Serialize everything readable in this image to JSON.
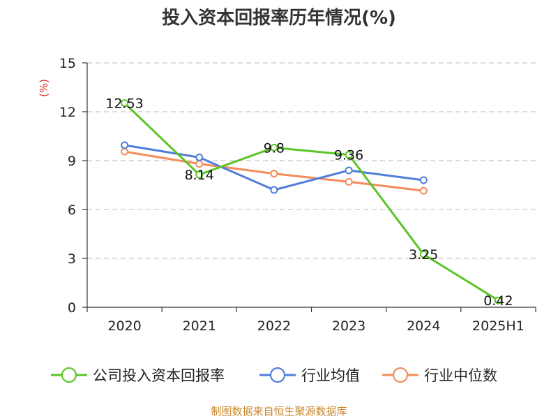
{
  "chart_data": {
    "type": "line",
    "title": "投入资本回报率历年情况(%)",
    "unit_label": "(%)",
    "xlabel": "",
    "ylabel": "",
    "categories": [
      "2020",
      "2021",
      "2022",
      "2023",
      "2024",
      "2025H1"
    ],
    "ylim": [
      0,
      15
    ],
    "yticks": [
      0,
      3,
      6,
      9,
      12,
      15
    ],
    "grid": true,
    "legend_position": "bottom",
    "series": [
      {
        "name": "公司投入资本回报率",
        "color": "#5cc529",
        "values": [
          12.53,
          8.14,
          9.8,
          9.36,
          3.25,
          0.42
        ],
        "labels": [
          "12.53",
          "8.14",
          "9.8",
          "9.36",
          "3.25",
          "0.42"
        ]
      },
      {
        "name": "行业均值",
        "color": "#4f7fdb",
        "values": [
          9.95,
          9.2,
          7.2,
          8.4,
          7.8,
          null
        ]
      },
      {
        "name": "行业中位数",
        "color": "#f48c5a",
        "values": [
          9.55,
          8.8,
          8.2,
          7.7,
          7.15,
          null
        ]
      }
    ]
  },
  "source": "制图数据来自恒生聚源数据库"
}
